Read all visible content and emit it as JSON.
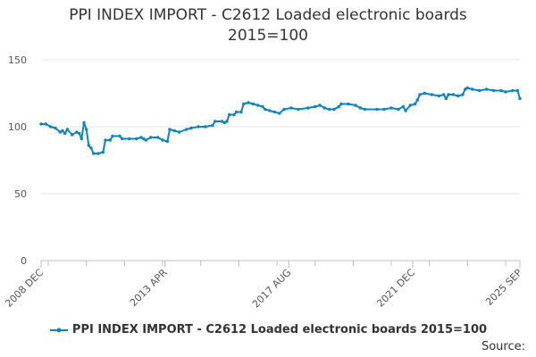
{
  "chart_data": {
    "type": "line",
    "title_line1": "PPI INDEX IMPORT - C2612 Loaded electronic boards",
    "title_line2": "2015=100",
    "xlabel": "",
    "ylabel": "",
    "ylim": [
      0,
      150
    ],
    "y_ticks": [
      0,
      50,
      100,
      150
    ],
    "x_range": [
      "2008-12",
      "2025-09"
    ],
    "x_tick_labels": [
      "2008 DEC",
      "2013 APR",
      "2017 AUG",
      "2021 DEC",
      "2025 SEP"
    ],
    "x_tick_dates": [
      "2008-12",
      "2013-04",
      "2017-08",
      "2021-12",
      "2025-09"
    ],
    "grid": "horizontal",
    "legend_position": "bottom",
    "color": "#0e84bf",
    "series": [
      {
        "name": "PPI INDEX IMPORT - C2612 Loaded electronic boards 2015=100",
        "points": [
          [
            "2008-12",
            102
          ],
          [
            "2009-02",
            102
          ],
          [
            "2009-04",
            100
          ],
          [
            "2009-06",
            99
          ],
          [
            "2009-08",
            96
          ],
          [
            "2009-09",
            97
          ],
          [
            "2009-10",
            95
          ],
          [
            "2009-11",
            98
          ],
          [
            "2010-01",
            94
          ],
          [
            "2010-03",
            96
          ],
          [
            "2010-04",
            95
          ],
          [
            "2010-05",
            91
          ],
          [
            "2010-06",
            103
          ],
          [
            "2010-07",
            98
          ],
          [
            "2010-08",
            86
          ],
          [
            "2010-09",
            84
          ],
          [
            "2010-10",
            80
          ],
          [
            "2010-12",
            80
          ],
          [
            "2011-02",
            81
          ],
          [
            "2011-03",
            90
          ],
          [
            "2011-05",
            90
          ],
          [
            "2011-06",
            93
          ],
          [
            "2011-09",
            93
          ],
          [
            "2011-10",
            91
          ],
          [
            "2012-01",
            91
          ],
          [
            "2012-04",
            91
          ],
          [
            "2012-06",
            92
          ],
          [
            "2012-07",
            91
          ],
          [
            "2012-08",
            90
          ],
          [
            "2012-10",
            92
          ],
          [
            "2013-01",
            92
          ],
          [
            "2013-03",
            90
          ],
          [
            "2013-05",
            89
          ],
          [
            "2013-06",
            98
          ],
          [
            "2013-08",
            97
          ],
          [
            "2013-10",
            96
          ],
          [
            "2014-01",
            98
          ],
          [
            "2014-03",
            99
          ],
          [
            "2014-06",
            100
          ],
          [
            "2014-09",
            100
          ],
          [
            "2014-12",
            101
          ],
          [
            "2015-01",
            104
          ],
          [
            "2015-04",
            104
          ],
          [
            "2015-05",
            103
          ],
          [
            "2015-06",
            104
          ],
          [
            "2015-07",
            109
          ],
          [
            "2015-09",
            109
          ],
          [
            "2015-10",
            111
          ],
          [
            "2015-12",
            111
          ],
          [
            "2016-01",
            117
          ],
          [
            "2016-03",
            118
          ],
          [
            "2016-05",
            117
          ],
          [
            "2016-07",
            116
          ],
          [
            "2016-09",
            115
          ],
          [
            "2016-10",
            113
          ],
          [
            "2016-12",
            112
          ],
          [
            "2017-02",
            111
          ],
          [
            "2017-04",
            110
          ],
          [
            "2017-06",
            113
          ],
          [
            "2017-09",
            114
          ],
          [
            "2017-12",
            113
          ],
          [
            "2018-04",
            114
          ],
          [
            "2018-07",
            115
          ],
          [
            "2018-09",
            116
          ],
          [
            "2018-11",
            114
          ],
          [
            "2019-01",
            113
          ],
          [
            "2019-03",
            113
          ],
          [
            "2019-05",
            115
          ],
          [
            "2019-06",
            117
          ],
          [
            "2019-09",
            117
          ],
          [
            "2019-12",
            116
          ],
          [
            "2020-02",
            114
          ],
          [
            "2020-04",
            113
          ],
          [
            "2020-09",
            113
          ],
          [
            "2020-12",
            113
          ],
          [
            "2021-03",
            114
          ],
          [
            "2021-06",
            113
          ],
          [
            "2021-08",
            115
          ],
          [
            "2021-09",
            112
          ],
          [
            "2021-11",
            116
          ],
          [
            "2022-01",
            117
          ],
          [
            "2022-02",
            120
          ],
          [
            "2022-03",
            124
          ],
          [
            "2022-05",
            125
          ],
          [
            "2022-08",
            124
          ],
          [
            "2022-11",
            123
          ],
          [
            "2023-01",
            124
          ],
          [
            "2023-02",
            121
          ],
          [
            "2023-03",
            124
          ],
          [
            "2023-05",
            124
          ],
          [
            "2023-07",
            123
          ],
          [
            "2023-09",
            124
          ],
          [
            "2023-10",
            128
          ],
          [
            "2023-11",
            129
          ],
          [
            "2024-01",
            128
          ],
          [
            "2024-04",
            127
          ],
          [
            "2024-07",
            128
          ],
          [
            "2024-10",
            127
          ],
          [
            "2025-01",
            127
          ],
          [
            "2025-03",
            126
          ],
          [
            "2025-06",
            127
          ],
          [
            "2025-08",
            127
          ],
          [
            "2025-09",
            121
          ]
        ]
      }
    ]
  },
  "footer": {
    "source_label": "Source:"
  }
}
